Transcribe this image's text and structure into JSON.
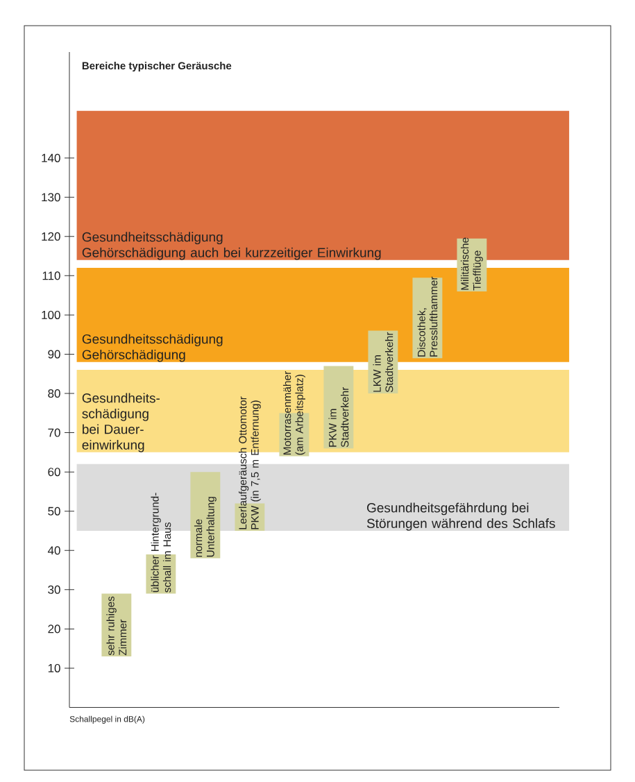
{
  "chart_data": {
    "type": "bar",
    "title": "Bereiche typischer Geräusche",
    "ylabel": "Schallpegel in dB(A)",
    "categories": [
      "sehr ruhiges Zimmer",
      "üblicher Hintergrund-schall im Haus",
      "normale Unterhaltung",
      "Leerlaufgeräusch Ottomotor PKW (in 7,5 m Entfernung)",
      "Motorrasenmäher (am Arbeitsplatz)",
      "PKW im Stadtverkehr",
      "LKW im Stadtverkehr",
      "Discothek, Presslufthammer",
      "Militärische Tiefflüge"
    ],
    "base": [
      13,
      29,
      38,
      45,
      64,
      66,
      80,
      89,
      106
    ],
    "values": [
      16,
      10,
      22,
      7,
      11,
      21,
      16,
      20.5,
      13.5
    ],
    "color": "#d2d39c",
    "ylim": [
      0,
      167
    ],
    "yticks": [
      10,
      20,
      30,
      40,
      50,
      60,
      70,
      80,
      90,
      100,
      110,
      120,
      130,
      140
    ],
    "bands": [
      {
        "axis": "y",
        "from": 114,
        "to": 152,
        "label": "Gesundheitsschädigung Gehörschädigung auch bei kurzzeitiger Einwirkung",
        "color": "#dd7040"
      },
      {
        "axis": "y",
        "from": 88,
        "to": 112,
        "label": "Gesundheitsschädigung Gehörschädigung",
        "color": "#f7a41c"
      },
      {
        "axis": "y",
        "from": 65,
        "to": 86,
        "label": "Gesundheits-schädigung bei Dauer-einwirkung",
        "color": "#fbde84"
      },
      {
        "axis": "y",
        "from": 45,
        "to": 62,
        "label": "Gesundheitsgefährdung bei Störungen während des Schlafs",
        "color": "#dcdcdc"
      }
    ]
  }
}
